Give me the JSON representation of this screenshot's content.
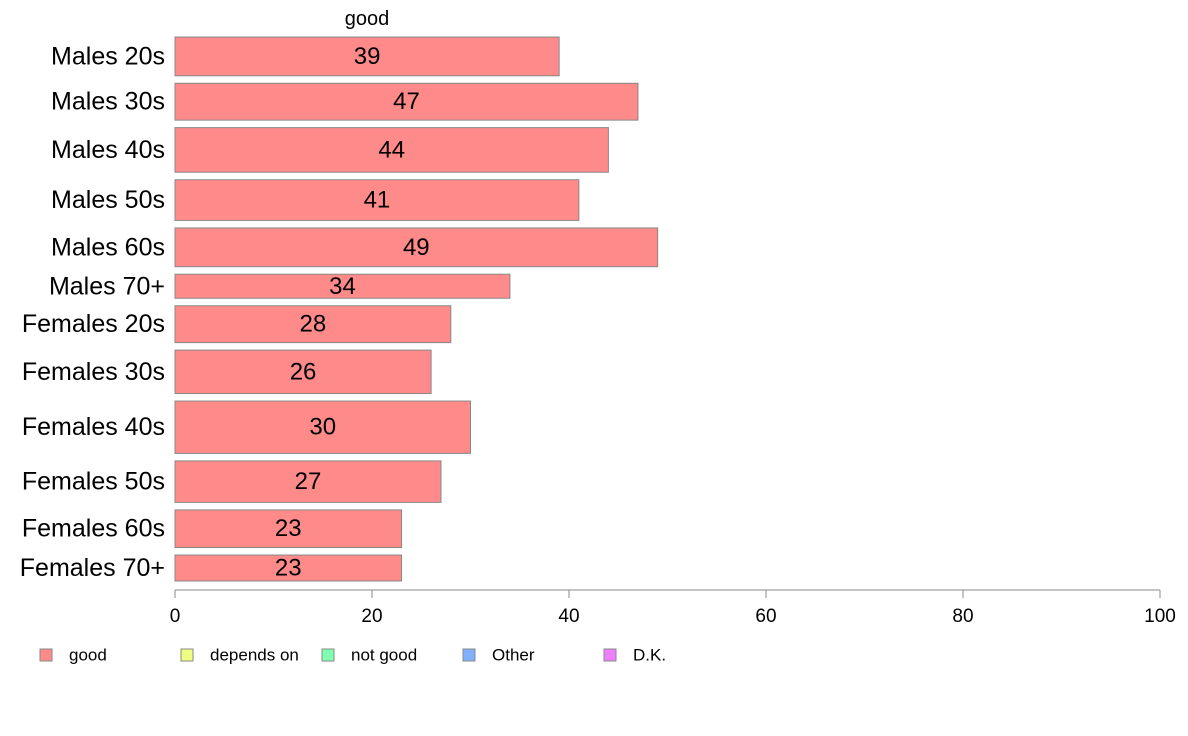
{
  "chart_data": {
    "type": "bar",
    "orientation": "horizontal",
    "series_title": "good",
    "categories": [
      "Males 20s",
      "Males 30s",
      "Males 40s",
      "Males 50s",
      "Males 60s",
      "Males 70+",
      "Females 20s",
      "Females 30s",
      "Females 40s",
      "Females 50s",
      "Females 60s",
      "Females 70+"
    ],
    "series": [
      {
        "name": "good",
        "values": [
          39,
          47,
          44,
          41,
          49,
          34,
          28,
          26,
          30,
          27,
          23,
          23
        ]
      }
    ],
    "bar_weights": [
      1.0,
      0.95,
      1.15,
      1.05,
      1.0,
      0.62,
      0.95,
      1.12,
      1.35,
      1.07,
      0.97,
      0.67
    ],
    "xlim": [
      0,
      100
    ],
    "xticks": [
      0,
      20,
      40,
      60,
      80,
      100
    ],
    "grid": false,
    "legend_position": "bottom",
    "legend": [
      {
        "label": "good",
        "color": "#ff8a8a"
      },
      {
        "label": "depends on",
        "color": "#eeff80"
      },
      {
        "label": "not good",
        "color": "#80ffb0"
      },
      {
        "label": "Other",
        "color": "#80b0ff"
      },
      {
        "label": "D.K.",
        "color": "#ee80ff"
      }
    ],
    "bar_color": "#ff8a8a"
  }
}
